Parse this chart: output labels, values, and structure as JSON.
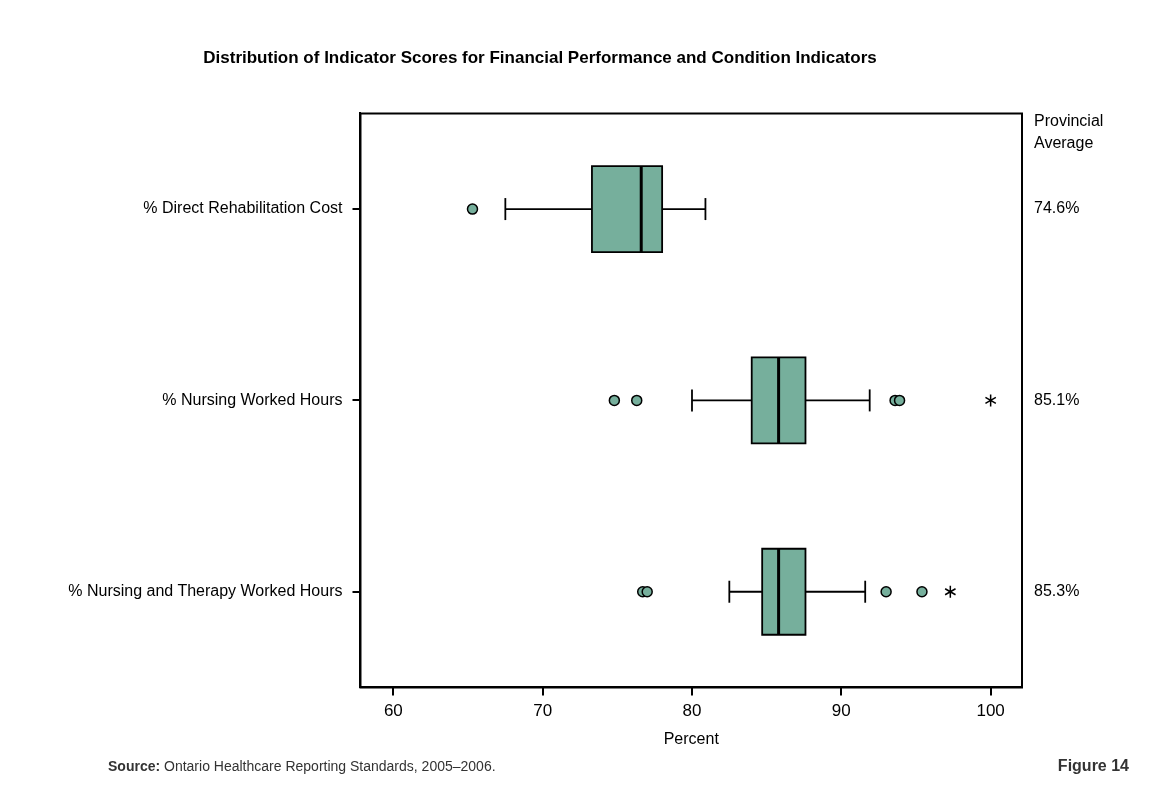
{
  "chart_data": {
    "type": "box",
    "title": "Distribution of Indicator Scores for Financial Performance and Condition Indicators",
    "xlabel": "Percent",
    "orientation": "horizontal",
    "color": "#76af9c",
    "categories": [
      "% Direct Rehabilitation Cost",
      "% Nursing Worked Hours",
      "% Nursing and Therapy Worked Hours"
    ],
    "xlim": [
      57.8,
      102.1
    ],
    "xticks": [
      60,
      70,
      80,
      90,
      100
    ],
    "grid": false,
    "boxes": [
      {
        "low": 67.5,
        "q1": 73.3,
        "median": 76.6,
        "q3": 78.0,
        "high": 80.9,
        "outliers": [
          65.3
        ]
      },
      {
        "low": 80.0,
        "q1": 84.0,
        "median": 85.8,
        "q3": 87.6,
        "high": 91.9,
        "outliers": [
          74.8,
          76.3,
          93.6,
          93.9,
          100.0
        ]
      },
      {
        "low": 82.5,
        "q1": 84.7,
        "median": 85.8,
        "q3": 87.6,
        "high": 91.6,
        "outliers": [
          76.7,
          77.0,
          93.0,
          95.4,
          97.3
        ]
      }
    ],
    "annotations": [
      "Provincial Average",
      "74.6%",
      "85.1%",
      "85.3%",
      "Source: Ontario Healthcare Reporting Standards, 2005–2006.",
      "Figure 14"
    ]
  }
}
